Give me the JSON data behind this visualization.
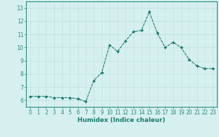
{
  "x": [
    0,
    1,
    2,
    3,
    4,
    5,
    6,
    7,
    8,
    9,
    10,
    11,
    12,
    13,
    14,
    15,
    16,
    17,
    18,
    19,
    20,
    21,
    22,
    23
  ],
  "y": [
    6.3,
    6.3,
    6.3,
    6.2,
    6.2,
    6.2,
    6.1,
    5.9,
    7.5,
    8.1,
    10.2,
    9.7,
    10.5,
    11.2,
    11.3,
    12.7,
    11.1,
    10.0,
    10.4,
    10.0,
    9.1,
    8.6,
    8.4,
    8.4
  ],
  "line_color": "#1a7a6e",
  "marker": "D",
  "marker_size": 2.0,
  "bg_color": "#d6f0ef",
  "grid_color": "#c0dedd",
  "xlabel": "Humidex (Indice chaleur)",
  "xlim": [
    -0.5,
    23.5
  ],
  "ylim": [
    5.5,
    13.5
  ],
  "yticks": [
    6,
    7,
    8,
    9,
    10,
    11,
    12,
    13
  ],
  "xticks": [
    0,
    1,
    2,
    3,
    4,
    5,
    6,
    7,
    8,
    9,
    10,
    11,
    12,
    13,
    14,
    15,
    16,
    17,
    18,
    19,
    20,
    21,
    22,
    23
  ],
  "tick_label_fontsize": 5.5,
  "xlabel_fontsize": 6.5,
  "spine_color": "#2a8a7e"
}
